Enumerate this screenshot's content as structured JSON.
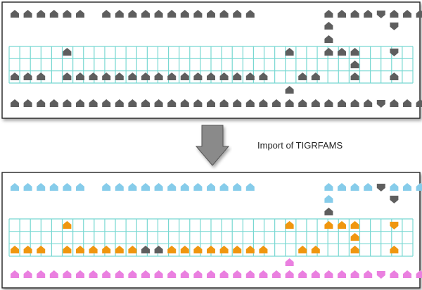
{
  "caption": "Import of TIGRFAMS",
  "colors": {
    "gray": "#5e5e5e",
    "blue": "#86ccea",
    "orange": "#f0960f",
    "pink": "#ea80e0",
    "grid_line": "#78d8d2",
    "panel_border": "#222222",
    "arrow_fill": "#8a8a8a"
  },
  "icon_names": {
    "house": "house-marker-icon",
    "shield": "shield-marker-icon",
    "arrow": "down-arrow-icon"
  },
  "panels": [
    {
      "name": "before-panel",
      "rows": [
        "HHHHHH.HHHHHHHHHHHH.....HHHHSHHHHHHHHH",
        "........................H....S....H...",
        "........................H.......H.H...",
        "....H................H..HHH..S..H.H.H.",
        "..........................H...........",
        "HHH.HHHHHHHHHHHHHHHH..HH..H..H..H.HHH.",
        ".....................H................",
        "HHHHHHHHHHHHHHHHHHHHHHHHHHHHSHHHHHHHHH"
      ],
      "colors": [
        "GGGGGG.GGGGGGGGGGGG.....GGGGGGGGGGGGGG",
        "........................G....G....G...",
        "........................G.......G.G...",
        "....G................G..GGG..G..G.G.G.",
        "..........................G...........",
        "GGG.GGGGGGGGGGGGGGGG..GG..G..G..G.GGG.",
        ".....................G................",
        "GGGGGGGGGGGGGGGGGGGGGGGGGGGGGGGGGGGGGG"
      ]
    },
    {
      "name": "after-panel",
      "rows": [
        "HHHHHH.HHHHHHHHHHHH.....HHHHSHHHHHHHHH",
        "........................H....S....H...",
        "........................H.......H.H...",
        "....H................H..HHH..S..H.H.H.",
        "..........................H...........",
        "HHH.HHHHHHHHHHHHHHHH..HH..H..H..H.HHH.",
        ".....................H................",
        "HHHHHHHHHHHHHHHHHHHHHHHHHHHHSHHHHHHHHH"
      ],
      "colors": [
        "BBBBBB.BBBBBBBBBBBB.....BBBBGBBBBBBBBG",
        "........................B....G....B...",
        "........................G.......G.G...",
        "....O................O..OOO..O..O.O.O.",
        "..........................O...........",
        "OOO.OOOOOOGGOOOOOOOO..OO..O..O..O.OOO.",
        ".....................P................",
        "PPPPPPPPPPPPPPPPPPPPPPPPPPPPPPPPPPPPPP"
      ]
    }
  ]
}
